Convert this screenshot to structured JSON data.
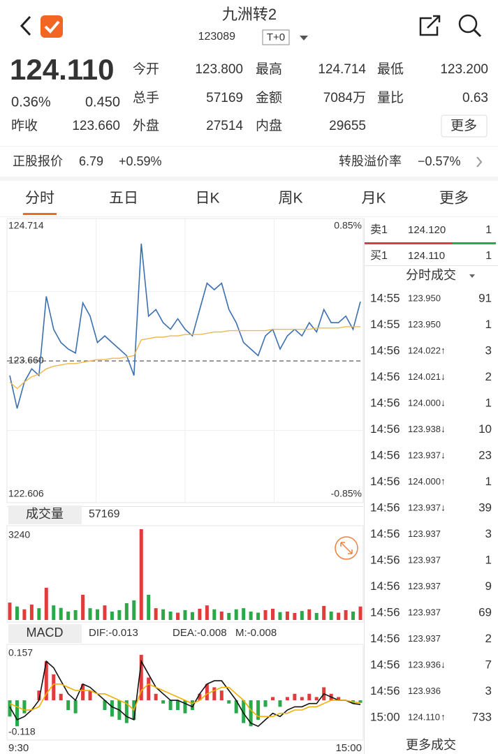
{
  "header": {
    "title": "九洲转2",
    "code": "123089",
    "tag": "T+0"
  },
  "quote": {
    "price": "124.110",
    "change_pct": "0.36%",
    "change": "0.450",
    "more": "更多",
    "fields": [
      {
        "label": "今开",
        "value": "123.800",
        "color": "#e03c3c"
      },
      {
        "label": "最高",
        "value": "124.714",
        "color": "#e03c3c"
      },
      {
        "label": "最低",
        "value": "123.200",
        "color": "#2ba84a"
      },
      {
        "label": "总手",
        "value": "57169",
        "color": "#333333"
      },
      {
        "label": "金额",
        "value": "7084万",
        "color": "#333333"
      },
      {
        "label": "量比",
        "value": "0.63",
        "color": "#333333"
      },
      {
        "label": "昨收",
        "value": "123.660",
        "color": "#333333"
      },
      {
        "label": "外盘",
        "value": "27514",
        "color": "#e03c3c"
      },
      {
        "label": "内盘",
        "value": "29655",
        "color": "#2ba84a"
      }
    ]
  },
  "stock_row": {
    "label": "正股报价",
    "price": "6.79",
    "change": "+0.59%",
    "premium_label": "转股溢价率",
    "premium": "−0.57%"
  },
  "tabs": [
    "分时",
    "五日",
    "日K",
    "周K",
    "月K",
    "更多"
  ],
  "active_tab": 0,
  "order_book": {
    "ask_label": "卖1",
    "ask_price": "124.120",
    "ask_vol": "1",
    "bid_label": "买1",
    "bid_price": "124.110",
    "bid_vol": "1"
  },
  "trades_title": "分时成交",
  "trades": [
    {
      "time": "14:55",
      "price": "123.950",
      "vol": 91,
      "color": "#2ba84a"
    },
    {
      "time": "14:55",
      "price": "123.950",
      "vol": 1,
      "color": "#e03c3c"
    },
    {
      "time": "14:56",
      "price": "124.022",
      "dir": "↑",
      "vol": 3,
      "color": "#e03c3c"
    },
    {
      "time": "14:56",
      "price": "124.021",
      "dir": "↓",
      "vol": 2,
      "color": "#e03c3c"
    },
    {
      "time": "14:56",
      "price": "124.000",
      "dir": "↓",
      "vol": 1,
      "color": "#2ba84a"
    },
    {
      "time": "14:56",
      "price": "123.938",
      "dir": "↓",
      "vol": 10,
      "color": "#2ba84a"
    },
    {
      "time": "14:56",
      "price": "123.937",
      "dir": "↓",
      "vol": 23,
      "color": "#2ba84a"
    },
    {
      "time": "14:56",
      "price": "124.000",
      "dir": "↑",
      "vol": 1,
      "color": "#e03c3c"
    },
    {
      "time": "14:56",
      "price": "123.937",
      "dir": "↓",
      "vol": 39,
      "color": "#2ba84a"
    },
    {
      "time": "14:56",
      "price": "123.937",
      "vol": 3,
      "color": "#e03c3c"
    },
    {
      "time": "14:56",
      "price": "123.937",
      "vol": 1,
      "color": "#e03c3c"
    },
    {
      "time": "14:56",
      "price": "123.937",
      "vol": 9,
      "color": "#e03c3c"
    },
    {
      "time": "14:56",
      "price": "123.937",
      "vol": 69,
      "color": "#2ba84a"
    },
    {
      "time": "14:56",
      "price": "123.937",
      "vol": 2,
      "color": "#e03c3c"
    },
    {
      "time": "14:56",
      "price": "123.936",
      "dir": "↓",
      "vol": 7,
      "color": "#2ba84a"
    },
    {
      "time": "14:56",
      "price": "123.936",
      "vol": 3,
      "color": "#e03c3c"
    },
    {
      "time": "15:00",
      "price": "124.110",
      "dir": "↑",
      "vol": 733,
      "color": "#2ba84a"
    }
  ],
  "more_trades": "更多成交",
  "chart_data": [
    {
      "type": "line",
      "categories": [
        "9:30",
        null,
        null,
        null,
        null,
        null,
        null,
        null,
        null,
        null,
        null,
        null,
        null,
        null,
        null,
        null,
        null,
        null,
        null,
        null,
        null,
        null,
        null,
        null,
        null,
        null,
        null,
        null,
        null,
        null,
        null,
        null,
        null,
        null,
        null,
        null,
        null,
        null,
        null,
        null,
        null,
        null,
        null,
        null,
        null,
        null,
        null,
        null,
        "15:00"
      ],
      "series": [
        {
          "color": "#3a6fb0",
          "values": [
            123.55,
            123.3,
            123.5,
            123.6,
            123.55,
            124.15,
            123.9,
            123.8,
            123.75,
            123.72,
            124.1,
            124.0,
            123.8,
            123.85,
            123.8,
            123.75,
            123.7,
            123.55,
            124.55,
            124.0,
            124.05,
            123.95,
            123.9,
            123.98,
            123.9,
            123.85,
            124.05,
            124.25,
            124.2,
            124.25,
            124.05,
            123.95,
            123.8,
            123.75,
            123.7,
            123.85,
            123.9,
            123.75,
            123.85,
            123.9,
            123.85,
            123.95,
            123.88,
            124.05,
            123.95,
            123.95,
            124.0,
            123.9,
            124.11
          ]
        },
        {
          "color": "#f0b84a",
          "values": [
            123.5,
            123.45,
            123.5,
            123.54,
            123.56,
            123.6,
            123.62,
            123.63,
            123.64,
            123.64,
            123.65,
            123.66,
            123.67,
            123.67,
            123.68,
            123.68,
            123.69,
            123.7,
            123.82,
            123.83,
            123.84,
            123.84,
            123.85,
            123.85,
            123.86,
            123.86,
            123.86,
            123.87,
            123.88,
            123.88,
            123.89,
            123.89,
            123.89,
            123.89,
            123.89,
            123.89,
            123.9,
            123.9,
            123.9,
            123.9,
            123.9,
            123.9,
            123.91,
            123.91,
            123.91,
            123.91,
            123.92,
            123.92,
            123.92
          ]
        }
      ],
      "ylim": [
        122.606,
        124.714
      ],
      "yticks": [
        124.714,
        {
          "value": 123.66,
          "label": "123.660"
        },
        122.606
      ],
      "y2lim": [
        -0.85,
        0.85
      ],
      "y2ticks": [
        {
          "value": 0.85,
          "label": "0.85%"
        },
        {
          "value": -0.85,
          "label": "-0.85%"
        }
      ]
    },
    {
      "type": "bar",
      "title": "成交量",
      "total": 57169,
      "values": [
        620,
        480,
        380,
        550,
        420,
        1150,
        520,
        430,
        300,
        350,
        900,
        420,
        380,
        520,
        300,
        350,
        600,
        700,
        3240,
        900,
        420,
        380,
        300,
        260,
        350,
        280,
        400,
        520,
        380,
        300,
        250,
        380,
        420,
        300,
        260,
        350,
        400,
        280,
        300,
        250,
        320,
        380,
        250,
        500,
        300,
        260,
        350,
        300,
        480
      ],
      "ylim": [
        0,
        3240
      ],
      "yticks": [
        3240
      ]
    },
    {
      "type": "macd",
      "title": "MACD",
      "series": [
        {
          "name": "DIF:-0.013",
          "color": "#111111",
          "values": [
            -0.02,
            -0.06,
            -0.05,
            -0.03,
            0.0,
            0.12,
            0.1,
            0.06,
            0.02,
            0.0,
            0.05,
            0.04,
            0.02,
            0.0,
            -0.02,
            -0.03,
            -0.05,
            -0.06,
            0.12,
            0.08,
            0.04,
            0.02,
            0.0,
            0.0,
            -0.01,
            -0.02,
            0.02,
            0.05,
            0.06,
            0.06,
            0.03,
            0.0,
            -0.04,
            -0.07,
            -0.08,
            -0.06,
            -0.04,
            -0.05,
            -0.03,
            -0.02,
            -0.02,
            -0.01,
            -0.01,
            0.02,
            0.01,
            0.0,
            0.0,
            -0.01,
            -0.013
          ]
        },
        {
          "name": "DEA:-0.008",
          "color": "#f0b000",
          "values": [
            -0.01,
            -0.02,
            -0.03,
            -0.03,
            -0.02,
            0.02,
            0.05,
            0.05,
            0.04,
            0.03,
            0.03,
            0.03,
            0.02,
            0.02,
            0.01,
            0.0,
            -0.01,
            -0.03,
            0.03,
            0.05,
            0.04,
            0.03,
            0.02,
            0.01,
            0.0,
            -0.01,
            0.0,
            0.02,
            0.03,
            0.04,
            0.04,
            0.02,
            0.0,
            -0.03,
            -0.05,
            -0.05,
            -0.05,
            -0.04,
            -0.04,
            -0.03,
            -0.03,
            -0.02,
            -0.02,
            -0.01,
            0.0,
            0.0,
            0.0,
            -0.005,
            -0.008
          ]
        },
        {
          "name": "M:-0.008",
          "color": "#b03fd0",
          "values": [
            -0.05,
            -0.08,
            -0.04,
            0.0,
            0.03,
            0.12,
            0.08,
            0.02,
            -0.03,
            -0.04,
            0.05,
            0.03,
            0.0,
            -0.03,
            -0.05,
            -0.06,
            -0.07,
            -0.06,
            0.14,
            0.07,
            0.02,
            -0.01,
            -0.03,
            -0.03,
            -0.04,
            -0.03,
            0.02,
            0.05,
            0.04,
            0.03,
            -0.01,
            -0.04,
            -0.07,
            -0.08,
            -0.06,
            -0.02,
            0.01,
            -0.02,
            0.01,
            0.02,
            0.01,
            0.02,
            0.01,
            0.04,
            0.02,
            0.01,
            0.0,
            -0.01,
            -0.008
          ]
        }
      ],
      "ylim": [
        -0.118,
        0.157
      ],
      "yticks": [
        0.157,
        -0.118
      ]
    }
  ]
}
